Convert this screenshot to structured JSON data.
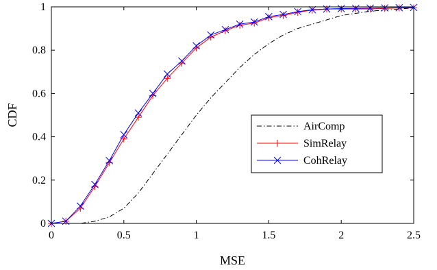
{
  "chart_data": {
    "type": "line",
    "title": "",
    "xlabel": "MSE",
    "ylabel": "CDF",
    "xlim": [
      0,
      2.5
    ],
    "ylim": [
      0,
      1
    ],
    "xticks": [
      0,
      0.5,
      1,
      1.5,
      2,
      2.5
    ],
    "xtick_labels": [
      "0",
      "0.5",
      "1",
      "1.5",
      "2",
      "2.5"
    ],
    "yticks": [
      0,
      0.2,
      0.4,
      0.6,
      0.8,
      1
    ],
    "ytick_labels": [
      "0",
      "0.2",
      "0.4",
      "0.6",
      "0.8",
      "1"
    ],
    "grid": false,
    "legend_position": "right-middle",
    "series": [
      {
        "name": "AirComp",
        "color": "#000000",
        "line_style": "dash-dot",
        "marker": "none",
        "x": [
          0,
          0.1,
          0.2,
          0.3,
          0.4,
          0.5,
          0.6,
          0.7,
          0.8,
          0.9,
          1.0,
          1.1,
          1.2,
          1.3,
          1.4,
          1.5,
          1.6,
          1.7,
          1.8,
          1.9,
          2.0,
          2.1,
          2.2,
          2.3,
          2.4,
          2.5
        ],
        "y": [
          0,
          0,
          0,
          0.01,
          0.03,
          0.07,
          0.14,
          0.23,
          0.32,
          0.41,
          0.5,
          0.58,
          0.65,
          0.72,
          0.78,
          0.83,
          0.87,
          0.9,
          0.92,
          0.94,
          0.96,
          0.97,
          0.98,
          0.985,
          0.99,
          0.995
        ]
      },
      {
        "name": "SimRelay",
        "color": "#ff0000",
        "line_style": "solid",
        "marker": "plus",
        "x": [
          0,
          0.1,
          0.2,
          0.3,
          0.4,
          0.5,
          0.6,
          0.7,
          0.8,
          0.9,
          1.0,
          1.1,
          1.2,
          1.3,
          1.4,
          1.5,
          1.6,
          1.7,
          1.8,
          1.9,
          2.0,
          2.1,
          2.2,
          2.3,
          2.4,
          2.5
        ],
        "y": [
          0,
          0.01,
          0.07,
          0.17,
          0.28,
          0.39,
          0.49,
          0.59,
          0.67,
          0.74,
          0.81,
          0.86,
          0.89,
          0.915,
          0.925,
          0.95,
          0.96,
          0.975,
          0.985,
          0.99,
          0.99,
          0.99,
          0.99,
          0.993,
          0.995,
          0.995
        ]
      },
      {
        "name": "CohRelay",
        "color": "#0000ff",
        "line_style": "solid",
        "marker": "cross",
        "x": [
          0,
          0.1,
          0.2,
          0.3,
          0.4,
          0.5,
          0.6,
          0.7,
          0.8,
          0.9,
          1.0,
          1.1,
          1.2,
          1.3,
          1.4,
          1.5,
          1.6,
          1.7,
          1.8,
          1.9,
          2.0,
          2.1,
          2.2,
          2.3,
          2.4,
          2.5
        ],
        "y": [
          0,
          0.01,
          0.08,
          0.18,
          0.29,
          0.41,
          0.51,
          0.6,
          0.69,
          0.75,
          0.82,
          0.87,
          0.895,
          0.92,
          0.93,
          0.955,
          0.965,
          0.978,
          0.987,
          0.99,
          0.992,
          0.993,
          0.994,
          0.995,
          0.996,
          0.997
        ]
      }
    ]
  }
}
